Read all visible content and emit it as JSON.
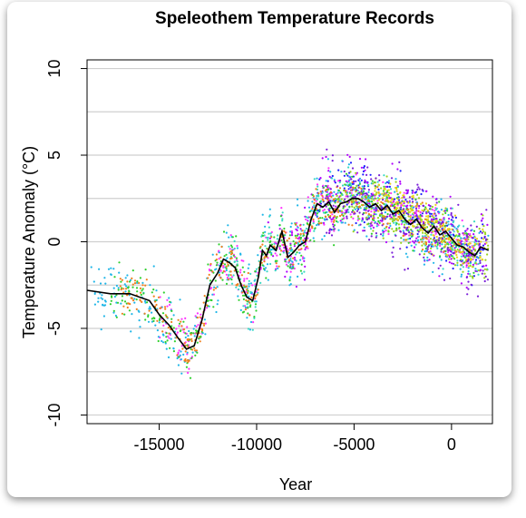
{
  "chart_data": {
    "type": "scatter",
    "title": "Speleothem Temperature Records",
    "xlabel": "Year",
    "ylabel": "Temperature Anomaly (°C)",
    "xlim": [
      -18700,
      2100
    ],
    "ylim": [
      -10.5,
      10.5
    ],
    "xticks": [
      -15000,
      -10000,
      -5000,
      0
    ],
    "xtick_labels": [
      "-15000",
      "-10000",
      "-5000",
      "0"
    ],
    "yticks": [
      -10,
      -5,
      0,
      5,
      10
    ],
    "ytick_labels": [
      "-10",
      "-5",
      "0",
      "5",
      "10"
    ],
    "grid": "horizontal gridlines every 2.5 °C",
    "legend": "none",
    "series": [
      {
        "kind": "line",
        "color": "#000000",
        "x": [
          -18700,
          -17500,
          -16500,
          -15500,
          -15000,
          -14500,
          -14000,
          -13600,
          -13200,
          -12800,
          -12400,
          -12000,
          -11700,
          -11400,
          -11100,
          -10800,
          -10500,
          -10200,
          -9900,
          -9700,
          -9500,
          -9300,
          -9000,
          -8700,
          -8400,
          -8100,
          -7800,
          -7500,
          -7200,
          -6900,
          -6600,
          -6300,
          -6000,
          -5700,
          -5400,
          -5100,
          -4800,
          -4500,
          -4200,
          -3900,
          -3600,
          -3300,
          -3000,
          -2700,
          -2400,
          -2100,
          -1800,
          -1500,
          -1200,
          -900,
          -600,
          -300,
          0,
          300,
          600,
          900,
          1200,
          1500,
          1900
        ],
        "y": [
          -2.8,
          -3.0,
          -3.0,
          -3.4,
          -4.2,
          -4.8,
          -5.6,
          -6.2,
          -6.0,
          -4.5,
          -2.5,
          -1.8,
          -1.0,
          -1.2,
          -1.5,
          -2.5,
          -3.2,
          -3.4,
          -2.0,
          -0.5,
          -0.8,
          -0.2,
          -0.5,
          0.6,
          -0.9,
          -0.6,
          -0.2,
          0.0,
          1.3,
          2.2,
          2.0,
          2.3,
          1.7,
          2.2,
          2.3,
          2.5,
          2.5,
          2.3,
          2.0,
          2.2,
          1.8,
          2.1,
          1.6,
          1.8,
          1.3,
          1.0,
          1.3,
          0.8,
          0.5,
          0.9,
          0.4,
          0.6,
          0.2,
          -0.2,
          -0.3,
          -0.6,
          -0.8,
          -0.3,
          -0.5
        ]
      }
    ],
    "point_clouds": [
      {
        "color": "#1f1fff",
        "x": [
          -7000,
          1800
        ],
        "base": "high plateau",
        "spread": 1.6
      },
      {
        "color": "#b100ff",
        "x": [
          -9500,
          1900
        ],
        "base": "high plateau",
        "spread": 2.0
      },
      {
        "color": "#ff33ff",
        "x": [
          -15000,
          1500
        ],
        "base": "trend",
        "spread": 1.5
      },
      {
        "color": "#1fb6e8",
        "x": [
          -18500,
          1900
        ],
        "base": "trend",
        "spread": 2.2
      },
      {
        "color": "#3ad9c4",
        "x": [
          -11500,
          1500
        ],
        "base": "trend",
        "spread": 1.6
      },
      {
        "color": "#2fd02f",
        "x": [
          -17500,
          1200
        ],
        "base": "trend",
        "spread": 1.5
      },
      {
        "color": "#9ad41c",
        "x": [
          -6000,
          1900
        ],
        "base": "trend",
        "spread": 1.6
      },
      {
        "color": "#f07f1c",
        "x": [
          -17000,
          1000
        ],
        "base": "trend",
        "spread": 1.2
      },
      {
        "color": "#e8d41c",
        "x": [
          -4000,
          1800
        ],
        "base": "high plateau",
        "spread": 1.2
      },
      {
        "color": "#7a1fd9",
        "x": [
          -6500,
          1900
        ],
        "base": "trend",
        "spread": 2.4
      }
    ]
  }
}
